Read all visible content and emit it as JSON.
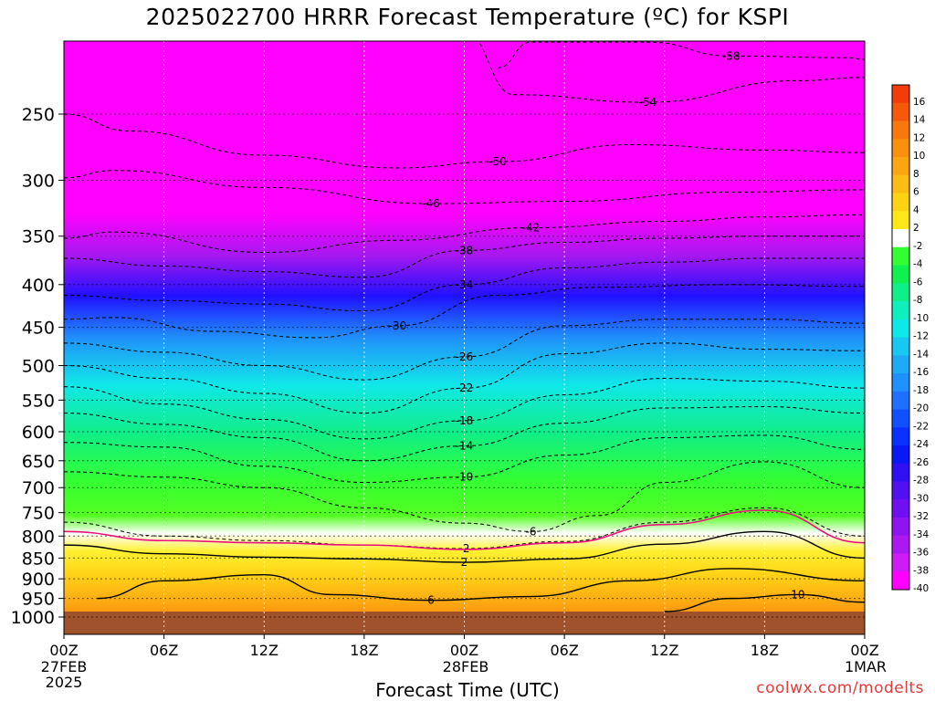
{
  "header": {
    "title": "2025022700 HRRR Forecast Temperature (ºC) for KSPI"
  },
  "footer": {
    "xlabel": "Forecast Time (UTC)",
    "credit": "coolwx.com/modelts"
  },
  "x_date_labels": [
    {
      "date": "27FEB",
      "year": "2025"
    },
    {
      "date": "28FEB",
      "year": ""
    },
    {
      "date": "1MAR",
      "year": ""
    }
  ],
  "colorbar_labels": [
    "16",
    "14",
    "12",
    "10",
    "8",
    "6",
    "4",
    "2",
    "-2",
    "-4",
    "-6",
    "-8",
    "-10",
    "-12",
    "-14",
    "-16",
    "-18",
    "-20",
    "-22",
    "-24",
    "-26",
    "-28",
    "-30",
    "-32",
    "-34",
    "-36",
    "-38",
    "-40"
  ],
  "colorbar_colors": [
    "#f23c0a",
    "#f55a0c",
    "#f7780e",
    "#f99010",
    "#fca512",
    "#fdbd14",
    "#ffd216",
    "#ffe81a",
    "#ffffff",
    "#33ff33",
    "#10f050",
    "#10ee88",
    "#10eebb",
    "#10e8e8",
    "#18c8f0",
    "#1eaaf5",
    "#2090fa",
    "#2070ff",
    "#1050ff",
    "#0a30ff",
    "#0a18f5",
    "#3010f0",
    "#5010f0",
    "#7010f0",
    "#8e14f0",
    "#ac18f0",
    "#cc1cf3",
    "#ff00ff"
  ],
  "colors": {
    "ground": "#a0522d",
    "upper_air": "#ff00ff",
    "freezing_line": "#e8127c",
    "credit": "#e43a3a"
  },
  "chart_data": {
    "type": "heatmap",
    "title": "2025022700 HRRR Forecast Temperature (ºC) for KSPI",
    "xlabel": "Forecast Time (UTC)",
    "ylabel": "",
    "x_tick_labels": [
      "00Z",
      "06Z",
      "12Z",
      "18Z",
      "00Z",
      "06Z",
      "12Z",
      "18Z",
      "00Z"
    ],
    "x_hours": [
      0,
      6,
      12,
      18,
      24,
      30,
      36,
      42,
      48
    ],
    "xlim": [
      0,
      48
    ],
    "y_tick_labels": [
      "250",
      "300",
      "350",
      "400",
      "450",
      "500",
      "550",
      "600",
      "650",
      "700",
      "750",
      "800",
      "850",
      "900",
      "950",
      "1000"
    ],
    "y_pressures": [
      250,
      300,
      350,
      400,
      450,
      500,
      550,
      600,
      650,
      700,
      750,
      800,
      850,
      900,
      950,
      1000
    ],
    "ylim_hPa": [
      200,
      1000
    ],
    "y_scale": "log-pressure, inverted",
    "grid": true,
    "surface_pressure_hPa": 985,
    "contour_interval_C": 4,
    "colorbar_range_C": [
      -40,
      16
    ],
    "temperature_profile_hour0": [
      {
        "p": 250,
        "t": -49
      },
      {
        "p": 300,
        "t": -46
      },
      {
        "p": 350,
        "t": -42
      },
      {
        "p": 400,
        "t": -38
      },
      {
        "p": 450,
        "t": -30
      },
      {
        "p": 500,
        "t": -24
      },
      {
        "p": 550,
        "t": -20
      },
      {
        "p": 600,
        "t": -16
      },
      {
        "p": 650,
        "t": -10
      },
      {
        "p": 700,
        "t": -6
      },
      {
        "p": 750,
        "t": -4
      },
      {
        "p": 800,
        "t": -1
      },
      {
        "p": 850,
        "t": 1
      },
      {
        "p": 900,
        "t": 3
      },
      {
        "p": 950,
        "t": 6
      },
      {
        "p": 1000,
        "t": 10
      }
    ],
    "contours": [
      {
        "value": -58,
        "points": [
          [
            26,
            220
          ],
          [
            28,
            205
          ],
          [
            35,
            205
          ],
          [
            40,
            213
          ],
          [
            47,
            214
          ],
          [
            48,
            215
          ]
        ]
      },
      {
        "value": -54,
        "points": [
          [
            24,
            200
          ],
          [
            27,
            237
          ],
          [
            35,
            242
          ],
          [
            44,
            228
          ],
          [
            48,
            226
          ]
        ]
      },
      {
        "value": -50,
        "points": [
          [
            0,
            250
          ],
          [
            4,
            262
          ],
          [
            12,
            280
          ],
          [
            20,
            290
          ],
          [
            26,
            285
          ],
          [
            34,
            272
          ],
          [
            42,
            276
          ],
          [
            48,
            278
          ]
        ]
      },
      {
        "value": -46,
        "points": [
          [
            0,
            298
          ],
          [
            3,
            292
          ],
          [
            12,
            306
          ],
          [
            22,
            320
          ],
          [
            30,
            318
          ],
          [
            40,
            310
          ],
          [
            48,
            308
          ]
        ]
      },
      {
        "value": -42,
        "points": [
          [
            0,
            352
          ],
          [
            3,
            346
          ],
          [
            12,
            366
          ],
          [
            20,
            354
          ],
          [
            28,
            342
          ],
          [
            36,
            336
          ],
          [
            42,
            332
          ],
          [
            48,
            330
          ]
        ]
      },
      {
        "value": -38,
        "points": [
          [
            0,
            372
          ],
          [
            6,
            380
          ],
          [
            12,
            386
          ],
          [
            18,
            392
          ],
          [
            24,
            364
          ],
          [
            30,
            356
          ],
          [
            36,
            352
          ],
          [
            42,
            350
          ],
          [
            48,
            350
          ]
        ]
      },
      {
        "value": -34,
        "points": [
          [
            0,
            412
          ],
          [
            6,
            418
          ],
          [
            12,
            422
          ],
          [
            18,
            430
          ],
          [
            24,
            400
          ],
          [
            30,
            382
          ],
          [
            36,
            376
          ],
          [
            42,
            372
          ],
          [
            48,
            372
          ]
        ]
      },
      {
        "value": -30,
        "points": [
          [
            0,
            440
          ],
          [
            3,
            438
          ],
          [
            9,
            455
          ],
          [
            15,
            463
          ],
          [
            20,
            448
          ],
          [
            26,
            412
          ],
          [
            32,
            403
          ],
          [
            40,
            400
          ],
          [
            48,
            402
          ]
        ]
      },
      {
        "value": -26,
        "points": [
          [
            0,
            470
          ],
          [
            6,
            482
          ],
          [
            12,
            500
          ],
          [
            18,
            520
          ],
          [
            24,
            488
          ],
          [
            30,
            448
          ],
          [
            36,
            440
          ],
          [
            42,
            440
          ],
          [
            48,
            445
          ]
        ]
      },
      {
        "value": -22,
        "points": [
          [
            0,
            500
          ],
          [
            6,
            518
          ],
          [
            12,
            540
          ],
          [
            18,
            570
          ],
          [
            24,
            532
          ],
          [
            30,
            484
          ],
          [
            36,
            470
          ],
          [
            42,
            478
          ],
          [
            48,
            480
          ]
        ]
      },
      {
        "value": -18,
        "points": [
          [
            0,
            530
          ],
          [
            6,
            556
          ],
          [
            12,
            580
          ],
          [
            18,
            612
          ],
          [
            24,
            582
          ],
          [
            30,
            542
          ],
          [
            36,
            518
          ],
          [
            42,
            522
          ],
          [
            48,
            532
          ]
        ]
      },
      {
        "value": -14,
        "points": [
          [
            0,
            570
          ],
          [
            6,
            588
          ],
          [
            12,
            610
          ],
          [
            18,
            650
          ],
          [
            24,
            624
          ],
          [
            30,
            586
          ],
          [
            36,
            562
          ],
          [
            42,
            560
          ],
          [
            48,
            570
          ]
        ]
      },
      {
        "value": -10,
        "points": [
          [
            0,
            618
          ],
          [
            6,
            626
          ],
          [
            12,
            660
          ],
          [
            18,
            690
          ],
          [
            24,
            680
          ],
          [
            30,
            640
          ],
          [
            36,
            610
          ],
          [
            42,
            606
          ],
          [
            48,
            630
          ]
        ]
      },
      {
        "value": -6,
        "points": [
          [
            0,
            670
          ],
          [
            6,
            680
          ],
          [
            12,
            700
          ],
          [
            18,
            740
          ],
          [
            24,
            772
          ],
          [
            28,
            790
          ],
          [
            32,
            756
          ],
          [
            36,
            690
          ],
          [
            42,
            652
          ],
          [
            48,
            700
          ]
        ]
      },
      {
        "value": -2,
        "points": [
          [
            0,
            770
          ],
          [
            6,
            800
          ],
          [
            12,
            810
          ],
          [
            18,
            820
          ],
          [
            24,
            828
          ],
          [
            30,
            812
          ],
          [
            36,
            770
          ],
          [
            42,
            740
          ],
          [
            48,
            800
          ]
        ]
      },
      {
        "value": 2,
        "points": [
          [
            0,
            820
          ],
          [
            6,
            840
          ],
          [
            12,
            848
          ],
          [
            18,
            852
          ],
          [
            24,
            860
          ],
          [
            30,
            852
          ],
          [
            36,
            818
          ],
          [
            42,
            790
          ],
          [
            48,
            850
          ]
        ]
      },
      {
        "value": 6,
        "points": [
          [
            2,
            950
          ],
          [
            6,
            905
          ],
          [
            12,
            890
          ],
          [
            16,
            940
          ],
          [
            22,
            955
          ],
          [
            28,
            945
          ],
          [
            34,
            905
          ],
          [
            40,
            875
          ],
          [
            48,
            905
          ]
        ]
      },
      {
        "value": 10,
        "points": [
          [
            36,
            985
          ],
          [
            40,
            950
          ],
          [
            44,
            940
          ],
          [
            48,
            960
          ]
        ]
      }
    ],
    "freezing_line_hPa": [
      [
        0,
        790
      ],
      [
        6,
        810
      ],
      [
        12,
        815
      ],
      [
        18,
        820
      ],
      [
        24,
        830
      ],
      [
        30,
        815
      ],
      [
        36,
        775
      ],
      [
        42,
        745
      ],
      [
        48,
        815
      ]
    ]
  }
}
